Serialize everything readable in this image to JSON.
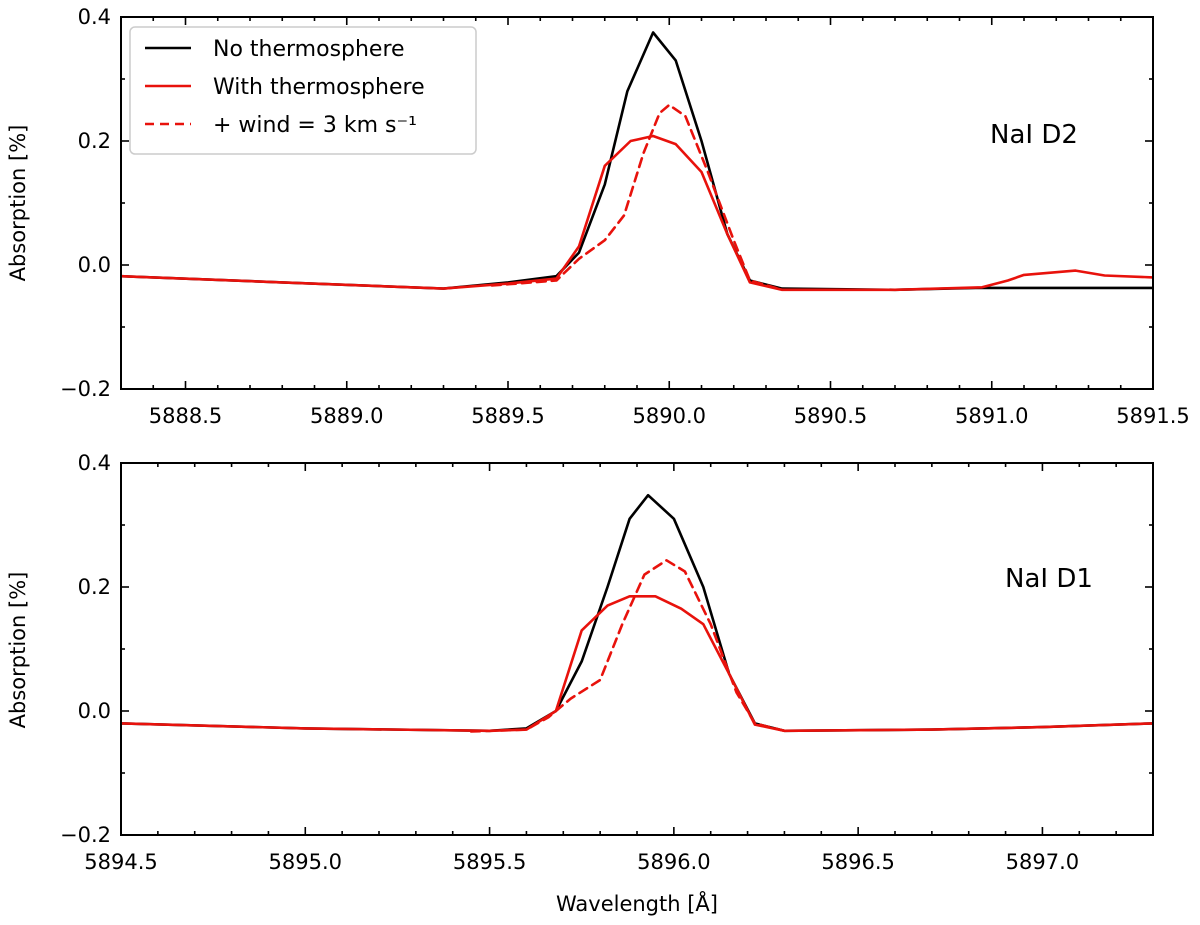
{
  "chart_data": [
    {
      "type": "line",
      "panel": "top",
      "annotation": "NaI D2",
      "xlabel": "",
      "ylabel": "Absorption [%]",
      "xlim": [
        5888.3,
        5891.5
      ],
      "ylim": [
        -0.2,
        0.4
      ],
      "xticks": [
        5888.5,
        5889.0,
        5889.5,
        5890.0,
        5890.5,
        5891.0,
        5891.5
      ],
      "xtick_labels": [
        "5888.5",
        "5889.0",
        "5889.5",
        "5890.0",
        "5890.5",
        "5891.0",
        "5891.5"
      ],
      "yticks": [
        -0.2,
        0.0,
        0.2,
        0.4
      ],
      "ytick_labels": [
        "−0.2",
        "0.0",
        "0.2",
        "0.4"
      ],
      "grid": false,
      "legend": {
        "placement": "top-left",
        "entries": [
          {
            "label": "No thermosphere",
            "color": "#000000",
            "dash": "solid"
          },
          {
            "label": "With thermosphere",
            "color": "#e8120c",
            "dash": "solid"
          },
          {
            "label": "+ wind = 3 km s⁻¹",
            "color": "#e8120c",
            "dash": "dashed"
          }
        ]
      },
      "series": [
        {
          "name": "No thermosphere",
          "color": "#000000",
          "dash": "solid",
          "points": [
            [
              5888.3,
              -0.018
            ],
            [
              5888.8,
              -0.028
            ],
            [
              5889.3,
              -0.038
            ],
            [
              5889.5,
              -0.028
            ],
            [
              5889.65,
              -0.018
            ],
            [
              5889.72,
              0.02
            ],
            [
              5889.8,
              0.13
            ],
            [
              5889.87,
              0.28
            ],
            [
              5889.95,
              0.375
            ],
            [
              5890.02,
              0.33
            ],
            [
              5890.1,
              0.2
            ],
            [
              5890.18,
              0.05
            ],
            [
              5890.25,
              -0.025
            ],
            [
              5890.35,
              -0.038
            ],
            [
              5890.7,
              -0.04
            ],
            [
              5890.95,
              -0.037
            ],
            [
              5891.5,
              -0.037
            ]
          ]
        },
        {
          "name": "With thermosphere",
          "color": "#e8120c",
          "dash": "solid",
          "points": [
            [
              5888.3,
              -0.018
            ],
            [
              5888.8,
              -0.028
            ],
            [
              5889.3,
              -0.038
            ],
            [
              5889.5,
              -0.03
            ],
            [
              5889.65,
              -0.022
            ],
            [
              5889.72,
              0.03
            ],
            [
              5889.8,
              0.16
            ],
            [
              5889.88,
              0.2
            ],
            [
              5889.95,
              0.208
            ],
            [
              5890.02,
              0.195
            ],
            [
              5890.1,
              0.15
            ],
            [
              5890.18,
              0.05
            ],
            [
              5890.25,
              -0.028
            ],
            [
              5890.35,
              -0.04
            ],
            [
              5890.7,
              -0.04
            ],
            [
              5890.97,
              -0.036
            ],
            [
              5891.05,
              -0.025
            ],
            [
              5891.1,
              -0.016
            ],
            [
              5891.26,
              -0.009
            ],
            [
              5891.35,
              -0.017
            ],
            [
              5891.5,
              -0.02
            ]
          ]
        },
        {
          "name": "+ wind = 3 km s⁻¹",
          "color": "#e8120c",
          "dash": "dashed",
          "points": [
            [
              5889.45,
              -0.033
            ],
            [
              5889.65,
              -0.025
            ],
            [
              5889.72,
              0.01
            ],
            [
              5889.8,
              0.04
            ],
            [
              5889.86,
              0.08
            ],
            [
              5889.92,
              0.18
            ],
            [
              5889.97,
              0.245
            ],
            [
              5890.0,
              0.258
            ],
            [
              5890.05,
              0.24
            ],
            [
              5890.12,
              0.15
            ],
            [
              5890.2,
              0.04
            ],
            [
              5890.25,
              -0.025
            ],
            [
              5890.35,
              -0.04
            ]
          ]
        }
      ]
    },
    {
      "type": "line",
      "panel": "bottom",
      "annotation": "NaI D1",
      "xlabel": "Wavelength [Å]",
      "ylabel": "Absorption [%]",
      "xlim": [
        5894.5,
        5897.3
      ],
      "ylim": [
        -0.2,
        0.4
      ],
      "xticks": [
        5894.5,
        5895.0,
        5895.5,
        5896.0,
        5896.5,
        5897.0
      ],
      "xtick_labels": [
        "5894.5",
        "5895.0",
        "5895.5",
        "5896.0",
        "5896.5",
        "5897.0"
      ],
      "yticks": [
        -0.2,
        0.0,
        0.2,
        0.4
      ],
      "ytick_labels": [
        "−0.2",
        "0.0",
        "0.2",
        "0.4"
      ],
      "grid": false,
      "series": [
        {
          "name": "No thermosphere",
          "color": "#000000",
          "dash": "solid",
          "points": [
            [
              5894.5,
              -0.02
            ],
            [
              5895.0,
              -0.028
            ],
            [
              5895.5,
              -0.032
            ],
            [
              5895.6,
              -0.028
            ],
            [
              5895.68,
              0.0
            ],
            [
              5895.75,
              0.08
            ],
            [
              5895.82,
              0.2
            ],
            [
              5895.88,
              0.31
            ],
            [
              5895.93,
              0.348
            ],
            [
              5896.0,
              0.31
            ],
            [
              5896.08,
              0.2
            ],
            [
              5896.15,
              0.06
            ],
            [
              5896.22,
              -0.02
            ],
            [
              5896.3,
              -0.032
            ],
            [
              5896.7,
              -0.03
            ],
            [
              5897.0,
              -0.026
            ],
            [
              5897.3,
              -0.02
            ]
          ]
        },
        {
          "name": "With thermosphere",
          "color": "#e8120c",
          "dash": "solid",
          "points": [
            [
              5894.5,
              -0.02
            ],
            [
              5895.0,
              -0.028
            ],
            [
              5895.5,
              -0.032
            ],
            [
              5895.6,
              -0.03
            ],
            [
              5895.68,
              0.0
            ],
            [
              5895.75,
              0.13
            ],
            [
              5895.82,
              0.17
            ],
            [
              5895.88,
              0.185
            ],
            [
              5895.95,
              0.185
            ],
            [
              5896.02,
              0.165
            ],
            [
              5896.08,
              0.14
            ],
            [
              5896.15,
              0.06
            ],
            [
              5896.22,
              -0.022
            ],
            [
              5896.3,
              -0.032
            ],
            [
              5896.7,
              -0.03
            ],
            [
              5897.0,
              -0.026
            ],
            [
              5897.3,
              -0.02
            ]
          ]
        },
        {
          "name": "+ wind = 3 km s⁻¹",
          "color": "#e8120c",
          "dash": "dashed",
          "points": [
            [
              5895.45,
              -0.033
            ],
            [
              5895.6,
              -0.03
            ],
            [
              5895.66,
              -0.01
            ],
            [
              5895.72,
              0.02
            ],
            [
              5895.8,
              0.05
            ],
            [
              5895.86,
              0.14
            ],
            [
              5895.92,
              0.22
            ],
            [
              5895.98,
              0.243
            ],
            [
              5896.03,
              0.225
            ],
            [
              5896.1,
              0.14
            ],
            [
              5896.17,
              0.03
            ],
            [
              5896.22,
              -0.02
            ],
            [
              5896.3,
              -0.032
            ]
          ]
        }
      ]
    }
  ]
}
